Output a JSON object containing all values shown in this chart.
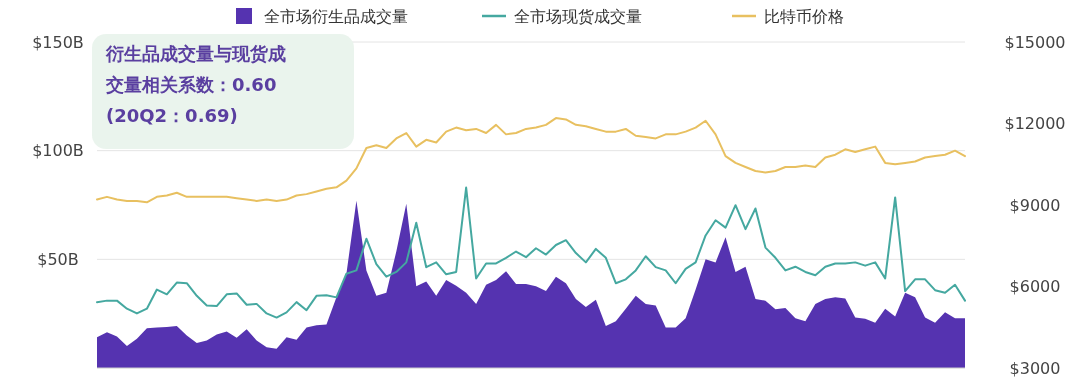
{
  "chart_data": {
    "type": "line",
    "categories": [
      null,
      null,
      null,
      null,
      null,
      null,
      null,
      null,
      null,
      null,
      null,
      null,
      null,
      null,
      null,
      null,
      null,
      null,
      null,
      null,
      null,
      null,
      null,
      null,
      null,
      null,
      null,
      null,
      null,
      null,
      null,
      null,
      null,
      null,
      null,
      null,
      null,
      null,
      null,
      null,
      null,
      null,
      null,
      null,
      null,
      null,
      null,
      null,
      null,
      null,
      null,
      null,
      null,
      null,
      null,
      null,
      null,
      null,
      null,
      null,
      null,
      null,
      null,
      null,
      null,
      null,
      null,
      null,
      null,
      null,
      null,
      null,
      null,
      null,
      null,
      null,
      null,
      null,
      null,
      null,
      null,
      null,
      null,
      null,
      null,
      null,
      null,
      null
    ],
    "series": [
      {
        "name": "全市场衍生品成交量",
        "type": "area",
        "color": "#5533b0",
        "values": [
          14.2,
          16.4,
          14.5,
          10.1,
          13.5,
          18.3,
          18.6,
          18.9,
          19.3,
          14.9,
          11.5,
          12.7,
          15.4,
          16.8,
          13.9,
          17.8,
          12.7,
          9.5,
          8.9,
          14.2,
          13,
          18.6,
          19.7,
          20,
          32.5,
          43.4,
          77,
          44.9,
          33.2,
          34.6,
          53.6,
          75.6,
          37.6,
          39.8,
          33.2,
          40.5,
          37.9,
          34.6,
          29.5,
          38.3,
          40.5,
          44.5,
          38.6,
          38.7,
          37.6,
          35.4,
          42,
          39,
          31.7,
          28.1,
          31.4,
          19.3,
          21.5,
          27.3,
          33.2,
          29.5,
          28.8,
          18.6,
          18.6,
          22.9,
          36.1,
          50,
          48.6,
          60.2,
          44.2,
          46.6,
          31.7,
          31,
          27,
          27.6,
          22.9,
          21.5,
          29.5,
          31.7,
          32.5,
          32,
          23.2,
          22.7,
          20.8,
          27.3,
          23.7,
          34.6,
          32.5,
          23.2,
          20.8,
          25.6,
          22.9,
          22.9
        ]
      },
      {
        "name": "全市场现货成交量",
        "color": "#45a8a0",
        "values": [
          30.3,
          31,
          31,
          27.3,
          25.1,
          27.3,
          36.1,
          33.9,
          39.3,
          39,
          33.2,
          28.8,
          28.5,
          33.9,
          34.3,
          29.1,
          29.5,
          25.1,
          23.2,
          25.6,
          30.3,
          26.6,
          33.2,
          33.5,
          32.5,
          43.4,
          44.9,
          59.5,
          47.8,
          42,
          44.2,
          48.6,
          66.8,
          46.4,
          48.6,
          43.1,
          44.2,
          83,
          41.2,
          48.1,
          48.1,
          50.7,
          53.6,
          51,
          55.1,
          52.2,
          56.6,
          58.8,
          52.9,
          48.6,
          54.8,
          50.7,
          39,
          40.8,
          44.9,
          51.4,
          46.4,
          44.9,
          39,
          45.6,
          48.6,
          61,
          68,
          64.6,
          74.9,
          63.9,
          73.4,
          55.4,
          50.7,
          44.9,
          46.6,
          44.2,
          42.7,
          46.6,
          48.1,
          48.1,
          48.6,
          47.1,
          48.6,
          41.2,
          78.5,
          35.4,
          40.8,
          40.8,
          35.8,
          34.6,
          38.3,
          31
        ]
      },
      {
        "name": "比特币价格",
        "axis": "y2",
        "color": "#e8c060",
        "values": [
          9200,
          9300,
          9200,
          9150,
          9150,
          9100,
          9300,
          9350,
          9450,
          9300,
          9300,
          9300,
          9300,
          9300,
          9250,
          9200,
          9150,
          9200,
          9150,
          9200,
          9350,
          9400,
          9500,
          9600,
          9650,
          9900,
          10350,
          11100,
          11200,
          11100,
          11450,
          11650,
          11150,
          11400,
          11300,
          11700,
          11850,
          11750,
          11800,
          11650,
          11950,
          11600,
          11650,
          11800,
          11850,
          11950,
          12200,
          12150,
          11950,
          11900,
          11800,
          11700,
          11700,
          11800,
          11550,
          11500,
          11450,
          11600,
          11600,
          11700,
          11850,
          12100,
          11600,
          10800,
          10550,
          10400,
          10250,
          10200,
          10250,
          10400,
          10400,
          10450,
          10400,
          10750,
          10850,
          11050,
          10950,
          11050,
          11150,
          10550,
          10500,
          10550,
          10600,
          10750,
          10800,
          10850,
          11000,
          10800
        ]
      }
    ],
    "ylim": [
      0,
      150
    ],
    "yticks": [
      {
        "value": 50,
        "label": "$50B"
      },
      {
        "value": 100,
        "label": "$100B"
      },
      {
        "value": 150,
        "label": "$150B"
      }
    ],
    "y2lim": [
      3000,
      15000
    ],
    "y2ticks": [
      {
        "value": 3000,
        "label": "$3000"
      },
      {
        "value": 6000,
        "label": "$6000"
      },
      {
        "value": 9000,
        "label": "$9000"
      },
      {
        "value": 12000,
        "label": "$12000"
      },
      {
        "value": 15000,
        "label": "$15000"
      }
    ],
    "grid": "y",
    "legend": "top",
    "annotations": [
      "衍生品成交量与现货成交量相关系数：0.60 (20Q2：0.69)"
    ]
  }
}
